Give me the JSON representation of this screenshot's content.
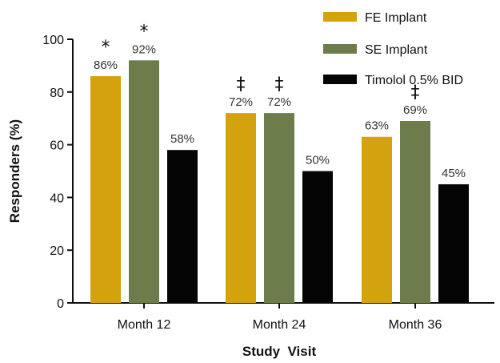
{
  "chart_data": {
    "type": "bar",
    "categories": [
      "Month 12",
      "Month 24",
      "Month 36"
    ],
    "series": [
      {
        "name": "FE Implant",
        "color": "#d4a20f",
        "values": [
          86,
          72,
          63
        ],
        "labels": [
          "86%",
          "72%",
          "63%"
        ],
        "marks": [
          "*",
          "‡",
          ""
        ]
      },
      {
        "name": "SE Implant",
        "color": "#6c7c4a",
        "values": [
          92,
          72,
          69
        ],
        "labels": [
          "92%",
          "72%",
          "69%"
        ],
        "marks": [
          "*",
          "‡",
          "‡"
        ]
      },
      {
        "name": "Timolol 0.5% BID",
        "color": "#050505",
        "values": [
          58,
          50,
          45
        ],
        "labels": [
          "58%",
          "50%",
          "45%"
        ],
        "marks": [
          "",
          "",
          ""
        ]
      }
    ],
    "xlabel": "Study  Visit",
    "ylabel": "Responders (%)",
    "ylim": [
      0,
      100
    ],
    "yticks": [
      "0",
      "20",
      "40",
      "60",
      "80",
      "100"
    ],
    "legend_position": "top-right",
    "grid": false
  }
}
